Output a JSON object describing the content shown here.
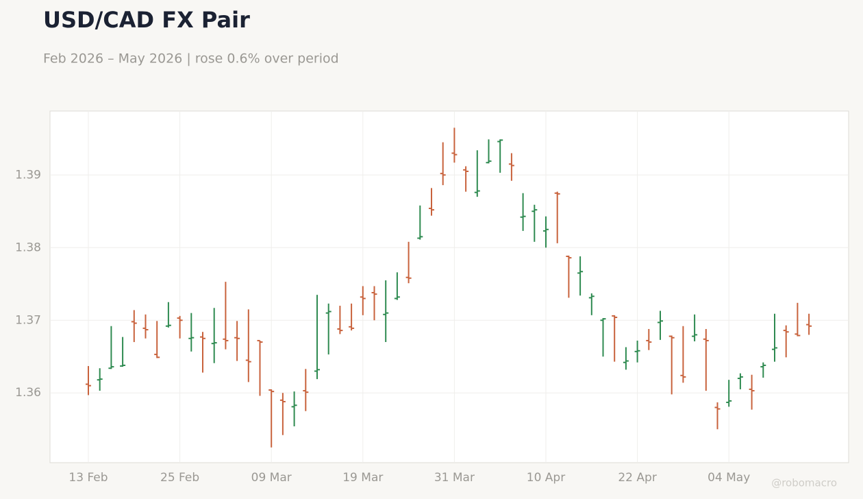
{
  "chart_data": {
    "type": "ohlc",
    "title": "USD/CAD FX Pair",
    "subtitle": "Feb 2026 – May 2026 | rose 0.6% over period",
    "credit": "@robomacro",
    "up_color": "#2e8a50",
    "down_color": "#c8623c",
    "grid": true,
    "ylim": [
      1.3504,
      1.3988
    ],
    "yticks": [
      1.36,
      1.37,
      1.38,
      1.39
    ],
    "categories": [
      "13 Feb",
      null,
      null,
      null,
      null,
      null,
      null,
      null,
      "25 Feb",
      null,
      null,
      null,
      null,
      null,
      null,
      null,
      "09 Mar",
      null,
      null,
      null,
      null,
      null,
      null,
      null,
      "19 Mar",
      null,
      null,
      null,
      null,
      null,
      null,
      null,
      "31 Mar",
      null,
      null,
      null,
      null,
      null,
      null,
      null,
      "10 Apr",
      null,
      null,
      null,
      null,
      null,
      null,
      null,
      "22 Apr",
      null,
      null,
      null,
      null,
      null,
      null,
      null,
      "04 May",
      null,
      null,
      null,
      null,
      null,
      null,
      null
    ],
    "open": [
      1.3612,
      1.3618,
      1.3634,
      1.3637,
      1.3698,
      1.3689,
      1.3653,
      1.3692,
      1.3703,
      1.3675,
      1.3677,
      1.3668,
      1.3674,
      1.3676,
      1.3645,
      1.3672,
      1.3604,
      1.359,
      1.3581,
      1.3603,
      1.363,
      1.371,
      1.3688,
      1.3691,
      1.3732,
      1.3738,
      1.3708,
      1.373,
      1.3759,
      1.3813,
      1.3854,
      1.3902,
      1.393,
      1.3907,
      1.3876,
      1.3917,
      1.3946,
      1.3915,
      1.3842,
      1.385,
      1.3823,
      1.3875,
      1.3788,
      1.3765,
      1.3731,
      1.37,
      1.3706,
      1.3642,
      1.3657,
      1.3672,
      1.3697,
      1.3678,
      1.3624,
      1.3678,
      1.3674,
      1.358,
      1.3587,
      1.362,
      1.3605,
      1.3636,
      1.366,
      1.3686,
      1.3681,
      1.3694
    ],
    "high": [
      1.3637,
      1.3634,
      1.3692,
      1.3677,
      1.3714,
      1.3708,
      1.3699,
      1.3725,
      1.3706,
      1.371,
      1.3684,
      1.3717,
      1.3753,
      1.3699,
      1.3715,
      1.3672,
      1.3605,
      1.36,
      1.3602,
      1.3633,
      1.3735,
      1.3723,
      1.372,
      1.3723,
      1.3747,
      1.3747,
      1.3755,
      1.3766,
      1.3808,
      1.3858,
      1.3882,
      1.3945,
      1.3965,
      1.3912,
      1.3934,
      1.3949,
      1.3949,
      1.393,
      1.3875,
      1.3859,
      1.3843,
      1.3877,
      1.3789,
      1.3788,
      1.3737,
      1.3703,
      1.3707,
      1.3663,
      1.3672,
      1.3688,
      1.3713,
      1.3679,
      1.3692,
      1.3708,
      1.3688,
      1.3587,
      1.3618,
      1.3627,
      1.3625,
      1.3642,
      1.3709,
      1.3693,
      1.3724,
      1.3709
    ],
    "low": [
      1.3597,
      1.3603,
      1.3633,
      1.3636,
      1.367,
      1.3675,
      1.3648,
      1.369,
      1.3675,
      1.3657,
      1.3628,
      1.3641,
      1.366,
      1.3644,
      1.3615,
      1.3596,
      1.3525,
      1.3542,
      1.3554,
      1.3575,
      1.3619,
      1.3653,
      1.3681,
      1.3686,
      1.3707,
      1.37,
      1.367,
      1.3728,
      1.3751,
      1.3811,
      1.3844,
      1.3886,
      1.3917,
      1.3877,
      1.387,
      1.3916,
      1.3903,
      1.3892,
      1.3823,
      1.3808,
      1.38,
      1.3806,
      1.3731,
      1.3734,
      1.3707,
      1.365,
      1.3643,
      1.3632,
      1.3642,
      1.3659,
      1.3673,
      1.3598,
      1.3614,
      1.3671,
      1.3603,
      1.355,
      1.3581,
      1.3605,
      1.3577,
      1.3621,
      1.3643,
      1.3649,
      1.3678,
      1.368
    ],
    "close": [
      1.361,
      1.3619,
      1.3636,
      1.3638,
      1.3696,
      1.3687,
      1.3649,
      1.3693,
      1.37,
      1.3676,
      1.3675,
      1.3669,
      1.3672,
      1.3675,
      1.3643,
      1.367,
      1.3602,
      1.3588,
      1.3583,
      1.3601,
      1.3632,
      1.3712,
      1.3686,
      1.3689,
      1.373,
      1.3736,
      1.371,
      1.3732,
      1.3758,
      1.3815,
      1.3852,
      1.39,
      1.3928,
      1.3905,
      1.3878,
      1.3919,
      1.3948,
      1.3913,
      1.3843,
      1.3852,
      1.3825,
      1.3874,
      1.3786,
      1.3767,
      1.3733,
      1.3702,
      1.3704,
      1.3644,
      1.3658,
      1.367,
      1.3699,
      1.3676,
      1.3622,
      1.368,
      1.3672,
      1.3578,
      1.3589,
      1.3622,
      1.3603,
      1.3638,
      1.3662,
      1.3684,
      1.3679,
      1.3692
    ]
  }
}
